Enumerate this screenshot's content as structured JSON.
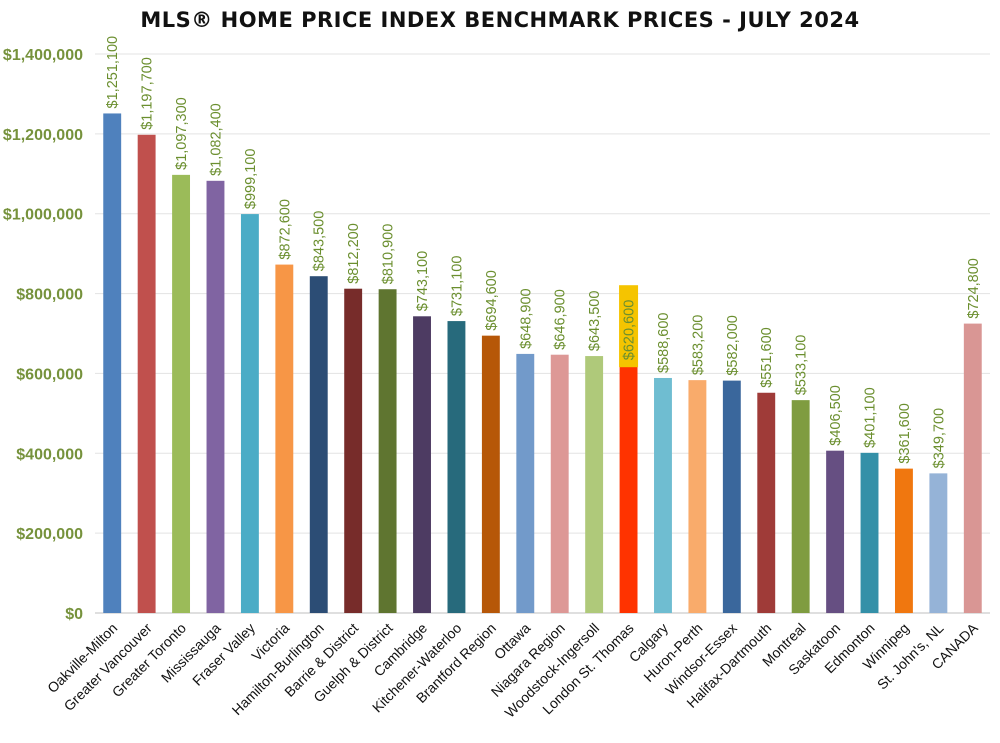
{
  "chart_data": {
    "type": "bar",
    "title": "MLS® HOME PRICE INDEX BENCHMARK PRICES - JULY 2024",
    "xlabel": "",
    "ylabel": "",
    "ylim": [
      0,
      1400000
    ],
    "yticks": [
      "$0",
      "$200,000",
      "$400,000",
      "$600,000",
      "$800,000",
      "$1,000,000",
      "$1,200,000",
      "$1,400,000"
    ],
    "ytick_values": [
      0,
      200000,
      400000,
      600000,
      800000,
      1000000,
      1200000,
      1400000
    ],
    "grid": true,
    "legend": "none",
    "highlight_label_color": "#f5c400",
    "bars": [
      {
        "category": "Oakville-Milton",
        "value": 1251100,
        "label": "$1,251,100",
        "color": "#4f81bd"
      },
      {
        "category": "Greater Vancouver",
        "value": 1197700,
        "label": "$1,197,700",
        "color": "#c0504d"
      },
      {
        "category": "Greater Toronto",
        "value": 1097300,
        "label": "$1,097,300",
        "color": "#9bbb59"
      },
      {
        "category": "Mississauga",
        "value": 1082400,
        "label": "$1,082,400",
        "color": "#8064a2"
      },
      {
        "category": "Fraser Valley",
        "value": 999100,
        "label": "$999,100",
        "color": "#4bacc6"
      },
      {
        "category": "Victoria",
        "value": 872600,
        "label": "$872,600",
        "color": "#f79646"
      },
      {
        "category": "Hamilton-Burlington",
        "value": 843500,
        "label": "$843,500",
        "color": "#2c4d75"
      },
      {
        "category": "Barrie & District",
        "value": 812200,
        "label": "$812,200",
        "color": "#772c2a"
      },
      {
        "category": "Guelph & District",
        "value": 810900,
        "label": "$810,900",
        "color": "#5f7530"
      },
      {
        "category": "Cambridge",
        "value": 743100,
        "label": "$743,100",
        "color": "#4d3b62"
      },
      {
        "category": "Kitchener-Waterloo",
        "value": 731100,
        "label": "$731,100",
        "color": "#276a7c"
      },
      {
        "category": "Brantford Region",
        "value": 694600,
        "label": "$694,600",
        "color": "#b65708"
      },
      {
        "category": "Ottawa",
        "value": 648900,
        "label": "$648,900",
        "color": "#729aca"
      },
      {
        "category": "Niagara Region",
        "value": 646900,
        "label": "$646,900",
        "color": "#dd9896"
      },
      {
        "category": "Woodstock-Ingersoll",
        "value": 643500,
        "label": "$643,500",
        "color": "#afc97a"
      },
      {
        "category": "London St. Thomas",
        "value": 620600,
        "label": "$620,600",
        "color": "#ff3300",
        "highlight": true
      },
      {
        "category": "Calgary",
        "value": 588600,
        "label": "$588,600",
        "color": "#6fbdd1"
      },
      {
        "category": "Huron-Perth",
        "value": 583200,
        "label": "$583,200",
        "color": "#f9ab6b"
      },
      {
        "category": "Windsor-Essex",
        "value": 582000,
        "label": "$582,000",
        "color": "#3a679c"
      },
      {
        "category": "Halifax-Dartmouth",
        "value": 551600,
        "label": "$551,600",
        "color": "#9f3b38"
      },
      {
        "category": "Montreal",
        "value": 533100,
        "label": "$533,100",
        "color": "#7f9c40"
      },
      {
        "category": "Saskatoon",
        "value": 406500,
        "label": "$406,500",
        "color": "#664f82"
      },
      {
        "category": "Edmonton",
        "value": 401100,
        "label": "$401,100",
        "color": "#3490a8"
      },
      {
        "category": "Winnipeg",
        "value": 361600,
        "label": "$361,600",
        "color": "#f0770f"
      },
      {
        "category": "St. John's, NL",
        "value": 349700,
        "label": "$349,700",
        "color": "#95b3d7"
      },
      {
        "category": "CANADA",
        "value": 724800,
        "label": "$724,800",
        "color": "#d99694"
      }
    ]
  }
}
